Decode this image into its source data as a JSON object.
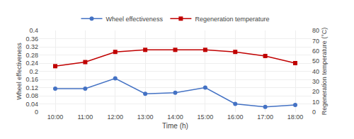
{
  "chart_data": {
    "type": "line",
    "categories": [
      "10:00",
      "11:00",
      "12:00",
      "13:00",
      "14:00",
      "15:00",
      "16:00",
      "17:00",
      "18:00"
    ],
    "series": [
      {
        "name": "Wheel effectiveness",
        "color": "#4472c4",
        "marker": "circle",
        "values": [
          0.115,
          0.115,
          0.165,
          0.09,
          0.095,
          0.12,
          0.04,
          0.025,
          0.035
        ]
      },
      {
        "name": "Regeneration temperature",
        "color": "#c00000",
        "marker": "square",
        "axis": "y2",
        "values": [
          45,
          49,
          59,
          61,
          61,
          61,
          59,
          55,
          48
        ]
      }
    ],
    "xlabel": "Time (h)",
    "ylabel": "Wheel effectiveness",
    "y2label": "Regeneration temperature (°C)",
    "ylim": [
      0,
      0.4
    ],
    "yticks": [
      0,
      0.04,
      0.08,
      0.12,
      0.16,
      0.2,
      0.24,
      0.28,
      0.32,
      0.36,
      0.4
    ],
    "y2lim": [
      0,
      80
    ],
    "y2ticks": [
      0,
      10,
      20,
      30,
      40,
      50,
      60,
      70,
      80
    ],
    "grid": true,
    "legend": "top"
  }
}
